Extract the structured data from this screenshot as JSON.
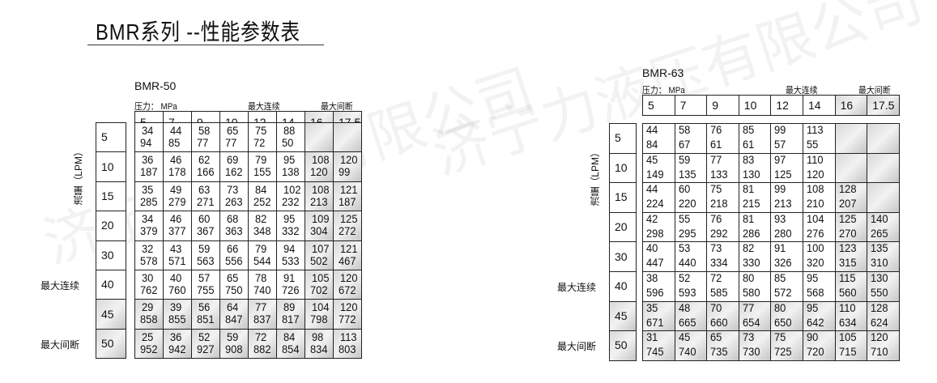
{
  "title": "BMR系列 --性能参数表",
  "pressure_label": "压力： MPa",
  "max_continuous": "最大连续",
  "max_intermittent": "最大间断",
  "flow_label": "流量（LPM）",
  "watermark": "济宁力液压有限公司",
  "tables": [
    {
      "model": "BMR-50",
      "pressures": [
        "5",
        "7",
        "9",
        "10",
        "12",
        "14",
        "16",
        "17.5"
      ],
      "flows": [
        "5",
        "10",
        "15",
        "20",
        "30",
        "40",
        "45",
        "50"
      ],
      "cells": [
        [
          [
            34,
            94
          ],
          [
            44,
            85
          ],
          [
            58,
            77
          ],
          [
            65,
            77
          ],
          [
            75,
            72
          ],
          [
            88,
            50
          ],
          null,
          null
        ],
        [
          [
            36,
            187
          ],
          [
            46,
            178
          ],
          [
            62,
            166
          ],
          [
            69,
            162
          ],
          [
            79,
            155
          ],
          [
            95,
            138
          ],
          [
            108,
            120
          ],
          [
            120,
            99
          ]
        ],
        [
          [
            35,
            285
          ],
          [
            49,
            279
          ],
          [
            63,
            271
          ],
          [
            73,
            263
          ],
          [
            84,
            252
          ],
          [
            102,
            232
          ],
          [
            108,
            213
          ],
          [
            121,
            187
          ]
        ],
        [
          [
            34,
            379
          ],
          [
            46,
            377
          ],
          [
            60,
            367
          ],
          [
            68,
            363
          ],
          [
            82,
            348
          ],
          [
            95,
            332
          ],
          [
            109,
            304
          ],
          [
            125,
            272
          ]
        ],
        [
          [
            32,
            578
          ],
          [
            43,
            571
          ],
          [
            59,
            563
          ],
          [
            66,
            556
          ],
          [
            79,
            544
          ],
          [
            94,
            533
          ],
          [
            107,
            502
          ],
          [
            121,
            467
          ]
        ],
        [
          [
            30,
            762
          ],
          [
            40,
            760
          ],
          [
            57,
            755
          ],
          [
            65,
            750
          ],
          [
            78,
            740
          ],
          [
            91,
            726
          ],
          [
            105,
            702
          ],
          [
            120,
            672
          ]
        ],
        [
          [
            29,
            858
          ],
          [
            39,
            855
          ],
          [
            56,
            851
          ],
          [
            64,
            847
          ],
          [
            77,
            837
          ],
          [
            89,
            817
          ],
          [
            104,
            798
          ],
          [
            120,
            772
          ]
        ],
        [
          [
            25,
            952
          ],
          [
            36,
            942
          ],
          [
            52,
            927
          ],
          [
            59,
            908
          ],
          [
            72,
            882
          ],
          [
            84,
            854
          ],
          [
            98,
            834
          ],
          [
            113,
            803
          ]
        ]
      ]
    },
    {
      "model": "BMR-63",
      "pressures": [
        "5",
        "7",
        "9",
        "10",
        "12",
        "14",
        "16",
        "17.5"
      ],
      "flows": [
        "5",
        "10",
        "15",
        "20",
        "30",
        "40",
        "45",
        "50"
      ],
      "cells": [
        [
          [
            44,
            84
          ],
          [
            58,
            67
          ],
          [
            76,
            61
          ],
          [
            85,
            61
          ],
          [
            99,
            57
          ],
          [
            113,
            55
          ],
          null,
          null
        ],
        [
          [
            45,
            149
          ],
          [
            59,
            135
          ],
          [
            77,
            133
          ],
          [
            83,
            130
          ],
          [
            97,
            125
          ],
          [
            110,
            120
          ],
          null,
          null
        ],
        [
          [
            44,
            224
          ],
          [
            60,
            220
          ],
          [
            75,
            218
          ],
          [
            81,
            215
          ],
          [
            99,
            213
          ],
          [
            108,
            210
          ],
          [
            128,
            207
          ],
          null
        ],
        [
          [
            42,
            298
          ],
          [
            55,
            295
          ],
          [
            76,
            292
          ],
          [
            81,
            286
          ],
          [
            93,
            280
          ],
          [
            104,
            276
          ],
          [
            125,
            270
          ],
          [
            140,
            265
          ]
        ],
        [
          [
            40,
            447
          ],
          [
            53,
            440
          ],
          [
            73,
            334
          ],
          [
            82,
            330
          ],
          [
            91,
            326
          ],
          [
            100,
            320
          ],
          [
            123,
            315
          ],
          [
            135,
            310
          ]
        ],
        [
          [
            38,
            596
          ],
          [
            52,
            593
          ],
          [
            72,
            585
          ],
          [
            80,
            580
          ],
          [
            85,
            572
          ],
          [
            95,
            568
          ],
          [
            115,
            560
          ],
          [
            130,
            550
          ]
        ],
        [
          [
            35,
            671
          ],
          [
            48,
            665
          ],
          [
            70,
            660
          ],
          [
            77,
            654
          ],
          [
            80,
            650
          ],
          [
            95,
            642
          ],
          [
            110,
            634
          ],
          [
            128,
            624
          ]
        ],
        [
          [
            31,
            745
          ],
          [
            45,
            740
          ],
          [
            65,
            735
          ],
          [
            73,
            730
          ],
          [
            75,
            725
          ],
          [
            90,
            720
          ],
          [
            105,
            715
          ],
          [
            120,
            710
          ]
        ]
      ]
    }
  ]
}
